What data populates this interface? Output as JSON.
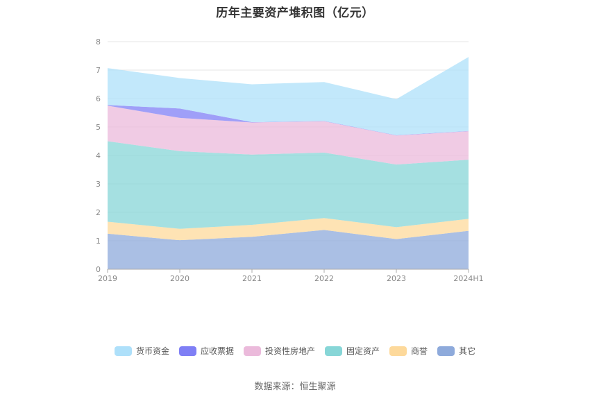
{
  "chart_data": {
    "type": "area",
    "stacked": true,
    "title": "历年主要资产堆积图（亿元）",
    "categories": [
      "2019",
      "2020",
      "2021",
      "2022",
      "2023",
      "2024H1"
    ],
    "ylim": [
      0,
      8
    ],
    "yticks": [
      "0",
      "1",
      "2",
      "3",
      "4",
      "5",
      "6",
      "7",
      "8"
    ],
    "grid": true,
    "legend_position": "bottom",
    "series": [
      {
        "name": "其它",
        "color": "#8eaadb",
        "values": [
          1.25,
          1.02,
          1.14,
          1.38,
          1.06,
          1.35
        ]
      },
      {
        "name": "商誉",
        "color": "#fdd99b",
        "values": [
          0.42,
          0.4,
          0.42,
          0.42,
          0.42,
          0.42
        ]
      },
      {
        "name": "固定资产",
        "color": "#87d6d7",
        "values": [
          2.83,
          2.73,
          2.47,
          2.3,
          2.2,
          2.08
        ]
      },
      {
        "name": "投资性房地产",
        "color": "#ebbadb",
        "values": [
          1.25,
          1.17,
          1.13,
          1.1,
          1.02,
          1.0
        ]
      },
      {
        "name": "应收票据",
        "color": "#7f7ff5",
        "values": [
          0.02,
          0.33,
          0.01,
          0.01,
          0.01,
          0.01
        ]
      },
      {
        "name": "货币资金",
        "color": "#aee0fa",
        "values": [
          1.3,
          1.07,
          1.33,
          1.37,
          1.27,
          2.6
        ]
      }
    ]
  },
  "legend": {
    "items": [
      {
        "label": "货币资金",
        "color": "#aee0fa"
      },
      {
        "label": "应收票据",
        "color": "#7f7ff5"
      },
      {
        "label": "投资性房地产",
        "color": "#ebbadb"
      },
      {
        "label": "固定资产",
        "color": "#87d6d7"
      },
      {
        "label": "商誉",
        "color": "#fdd99b"
      },
      {
        "label": "其它",
        "color": "#8eaadb"
      }
    ]
  },
  "source": "数据来源：恒生聚源"
}
